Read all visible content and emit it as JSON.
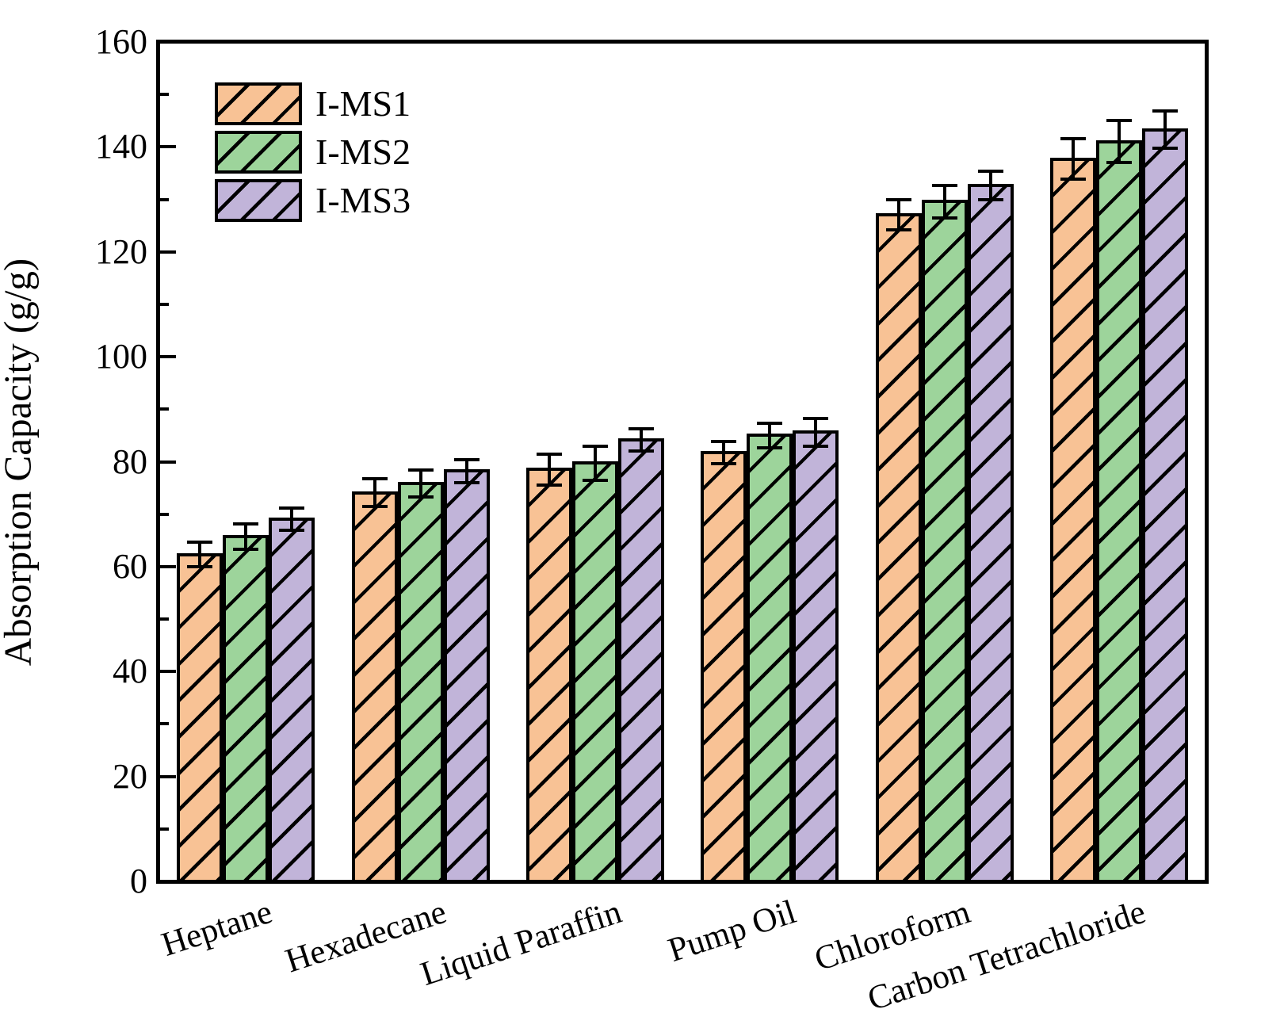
{
  "chart_data": {
    "type": "bar",
    "title": "",
    "xlabel": "",
    "ylabel": "Absorption Capacity (g/g)",
    "ylim": [
      0,
      160
    ],
    "ytick_step": 20,
    "yminor_step": 10,
    "ytick_labels": [
      "0",
      "20",
      "40",
      "60",
      "80",
      "100",
      "120",
      "140",
      "160"
    ],
    "grid": false,
    "legend_position": "top-left",
    "bar_style": "hatched-diagonal",
    "edge_color": "#000000",
    "categories": [
      "Heptane",
      "Hexadecane",
      "Liquid Paraffin",
      "Pump Oil",
      "Chloroform",
      "Carbon Tetrachloride"
    ],
    "series": [
      {
        "name": "I-MS1",
        "color": "#F8C295",
        "values": [
          62.3,
          74.1,
          78.5,
          81.7,
          127.1,
          137.7
        ],
        "errors": [
          2.3,
          2.6,
          2.9,
          2.1,
          2.9,
          3.8
        ]
      },
      {
        "name": "I-MS2",
        "color": "#9DD49B",
        "values": [
          65.7,
          75.8,
          79.7,
          85.0,
          129.6,
          141.0
        ],
        "errors": [
          2.4,
          2.6,
          3.3,
          2.4,
          3.1,
          4.0
        ]
      },
      {
        "name": "I-MS3",
        "color": "#C1B4D9",
        "values": [
          69.0,
          78.2,
          84.1,
          85.6,
          132.7,
          143.3
        ],
        "errors": [
          2.1,
          2.2,
          2.1,
          2.6,
          2.7,
          3.5
        ]
      }
    ]
  }
}
